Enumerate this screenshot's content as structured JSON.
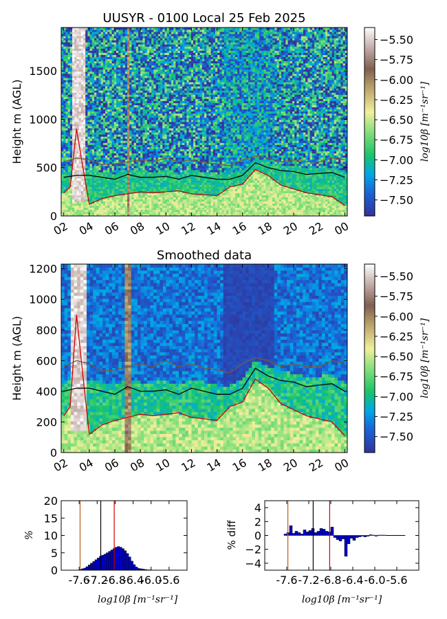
{
  "chart_data": [
    {
      "type": "heatmap",
      "title": "UUSYR - 0100 Local 25 Feb 2025",
      "ylabel": "Height m (AGL)",
      "xlabel": "",
      "x_ticks": [
        "02",
        "04",
        "06",
        "08",
        "10",
        "12",
        "14",
        "16",
        "18",
        "20",
        "22",
        "00"
      ],
      "x_tick_hours": [
        2,
        4,
        6,
        8,
        10,
        12,
        14,
        16,
        18,
        20,
        22,
        24
      ],
      "xlim_hours": [
        1.8,
        24.2
      ],
      "y_ticks": [
        0,
        500,
        1000,
        1500
      ],
      "ylim": [
        0,
        1950
      ],
      "colorbar": {
        "label": "log10β [m⁻¹sr⁻¹]",
        "ticks": [
          "−5.50",
          "−5.75",
          "−6.00",
          "−6.25",
          "−6.50",
          "−6.75",
          "−7.00",
          "−7.25",
          "−7.50"
        ],
        "tick_values": [
          -5.5,
          -5.75,
          -6.0,
          -6.25,
          -6.5,
          -6.75,
          -7.0,
          -7.25,
          -7.5
        ],
        "range": [
          -7.7,
          -5.35
        ],
        "colormap": "terrain_r"
      },
      "lines": [
        {
          "color": "#cc0000",
          "x": [
            2,
            2.5,
            3,
            3.5,
            4,
            5,
            6,
            7,
            8,
            9,
            10,
            11,
            12,
            13,
            14,
            15,
            16,
            17,
            18,
            19,
            20,
            21,
            22,
            23,
            24
          ],
          "y": [
            240,
            300,
            900,
            500,
            120,
            180,
            210,
            230,
            250,
            240,
            250,
            260,
            230,
            220,
            210,
            300,
            330,
            480,
            420,
            320,
            280,
            240,
            220,
            200,
            110
          ]
        },
        {
          "color": "#000000",
          "x": [
            2,
            3,
            4,
            5,
            6,
            7,
            8,
            9,
            10,
            11,
            12,
            13,
            14,
            15,
            16,
            17,
            18,
            19,
            20,
            21,
            22,
            23,
            24
          ],
          "y": [
            400,
            420,
            420,
            400,
            380,
            430,
            400,
            400,
            410,
            380,
            420,
            400,
            380,
            380,
            420,
            550,
            500,
            470,
            460,
            430,
            440,
            450,
            400
          ]
        },
        {
          "color": "#7a5a3a",
          "x": [
            2,
            3,
            4,
            5,
            6,
            7,
            8,
            9,
            10,
            11,
            12,
            13,
            14,
            15,
            16,
            17,
            18,
            19,
            20,
            21,
            22,
            23,
            24
          ],
          "y": [
            560,
            600,
            580,
            530,
            540,
            560,
            580,
            560,
            600,
            560,
            580,
            550,
            540,
            520,
            580,
            620,
            600,
            560,
            580,
            560,
            560,
            600,
            580
          ]
        }
      ]
    },
    {
      "type": "heatmap",
      "title": "Smoothed data",
      "ylabel": "Height m (AGL)",
      "xlabel": "",
      "x_ticks": [
        "02",
        "04",
        "06",
        "08",
        "10",
        "12",
        "14",
        "16",
        "18",
        "20",
        "22",
        "00"
      ],
      "x_tick_hours": [
        2,
        4,
        6,
        8,
        10,
        12,
        14,
        16,
        18,
        20,
        22,
        24
      ],
      "xlim_hours": [
        1.8,
        24.2
      ],
      "y_ticks": [
        0,
        200,
        400,
        600,
        800,
        1000,
        1200
      ],
      "ylim": [
        0,
        1230
      ],
      "colorbar": {
        "label": "log10β [m⁻¹sr⁻¹]",
        "ticks": [
          "−5.50",
          "−5.75",
          "−6.00",
          "−6.25",
          "−6.50",
          "−6.75",
          "−7.00",
          "−7.25",
          "−7.50"
        ],
        "tick_values": [
          -5.5,
          -5.75,
          -6.0,
          -6.25,
          -6.5,
          -6.75,
          -7.0,
          -7.25,
          -7.5
        ],
        "range": [
          -7.7,
          -5.35
        ],
        "colormap": "terrain_r"
      },
      "lines": [
        {
          "color": "#cc0000",
          "x": [
            2,
            2.5,
            3,
            3.5,
            4,
            5,
            6,
            7,
            8,
            9,
            10,
            11,
            12,
            13,
            14,
            15,
            16,
            17,
            18,
            19,
            20,
            21,
            22,
            23,
            24
          ],
          "y": [
            240,
            300,
            900,
            500,
            120,
            180,
            210,
            230,
            250,
            240,
            250,
            260,
            230,
            220,
            210,
            300,
            330,
            480,
            420,
            320,
            280,
            240,
            220,
            200,
            110
          ]
        },
        {
          "color": "#000000",
          "x": [
            2,
            3,
            4,
            5,
            6,
            7,
            8,
            9,
            10,
            11,
            12,
            13,
            14,
            15,
            16,
            17,
            18,
            19,
            20,
            21,
            22,
            23,
            24
          ],
          "y": [
            400,
            420,
            420,
            400,
            380,
            430,
            400,
            400,
            410,
            380,
            420,
            400,
            380,
            380,
            420,
            550,
            500,
            470,
            460,
            430,
            440,
            450,
            400
          ]
        },
        {
          "color": "#7a5a3a",
          "x": [
            2,
            3,
            4,
            5,
            6,
            7,
            8,
            9,
            10,
            11,
            12,
            13,
            14,
            15,
            16,
            17,
            18,
            19,
            20,
            21,
            22,
            23,
            24
          ],
          "y": [
            560,
            600,
            580,
            530,
            540,
            560,
            580,
            560,
            600,
            560,
            580,
            550,
            540,
            520,
            580,
            620,
            600,
            560,
            580,
            560,
            560,
            600,
            580
          ]
        }
      ]
    },
    {
      "type": "bar",
      "title": "",
      "ylabel": "%",
      "xlabel": "log10β [m⁻¹sr⁻¹]",
      "x_ticks": [
        "-7.6",
        "-7.2",
        "-6.8",
        "-6.4",
        "-6.0",
        "-5.6"
      ],
      "x_tick_values": [
        -7.6,
        -7.2,
        -6.8,
        -6.4,
        -6.0,
        -5.6
      ],
      "xlim": [
        -8.0,
        -5.2
      ],
      "y_ticks": [
        "0",
        "5",
        "10",
        "15",
        "20"
      ],
      "ylim": [
        0,
        20
      ],
      "bin_width": 0.05,
      "bin_starts": [
        -7.6,
        -7.55,
        -7.5,
        -7.45,
        -7.4,
        -7.35,
        -7.3,
        -7.25,
        -7.2,
        -7.15,
        -7.1,
        -7.05,
        -7.0,
        -6.95,
        -6.9,
        -6.85,
        -6.8,
        -6.75,
        -6.7,
        -6.65,
        -6.6,
        -6.55,
        -6.5,
        -6.45,
        -6.4,
        -6.35,
        -6.3,
        -6.25,
        -6.2,
        -6.15,
        -6.1,
        -6.05,
        -6.0
      ],
      "values": [
        0.2,
        0.4,
        0.6,
        1.0,
        1.5,
        2.0,
        2.5,
        3.0,
        3.5,
        4.0,
        4.3,
        4.6,
        5.0,
        5.4,
        5.8,
        6.2,
        6.6,
        6.8,
        6.6,
        6.2,
        5.6,
        4.8,
        3.8,
        2.6,
        1.6,
        0.9,
        0.5,
        0.4,
        0.3,
        0.2,
        0.1,
        0.1,
        0.05
      ],
      "vlines": [
        {
          "x": -7.58,
          "color": "#b85c1a"
        },
        {
          "x": -7.12,
          "color": "#000000"
        },
        {
          "x": -6.82,
          "color": "#cc0000"
        }
      ]
    },
    {
      "type": "bar",
      "title": "",
      "ylabel": "% diff",
      "xlabel": "log10β [m⁻¹sr⁻¹]",
      "x_ticks": [
        "-7.6",
        "-7.2",
        "-6.8",
        "-6.4",
        "-6.0",
        "-5.6"
      ],
      "x_tick_values": [
        -7.6,
        -7.2,
        -6.8,
        -6.4,
        -6.0,
        -5.6
      ],
      "xlim": [
        -8.0,
        -5.2
      ],
      "y_ticks": [
        "−4",
        "−2",
        "0",
        "2",
        "4"
      ],
      "ylim": [
        -5,
        5
      ],
      "bin_width": 0.05,
      "bin_starts": [
        -7.65,
        -7.6,
        -7.55,
        -7.5,
        -7.45,
        -7.4,
        -7.35,
        -7.3,
        -7.25,
        -7.2,
        -7.15,
        -7.1,
        -7.05,
        -7.0,
        -6.95,
        -6.9,
        -6.85,
        -6.8,
        -6.75,
        -6.7,
        -6.65,
        -6.6,
        -6.55,
        -6.5,
        -6.45,
        -6.4,
        -6.35,
        -6.3,
        -6.25,
        -6.2,
        -6.15,
        -6.1,
        -6.05,
        -6.0,
        -5.95,
        -5.9,
        -5.85,
        -5.8,
        -5.75,
        -5.7,
        -5.65,
        -5.6,
        -5.55,
        -5.5
      ],
      "values": [
        0.2,
        0.4,
        1.4,
        0.3,
        0.6,
        0.4,
        0.2,
        0.8,
        0.5,
        0.7,
        1.0,
        0.4,
        0.6,
        1.0,
        0.9,
        0.6,
        0.5,
        1.2,
        -0.3,
        -0.6,
        -0.8,
        -0.5,
        -3.0,
        -1.2,
        -0.4,
        -0.7,
        -0.3,
        -0.2,
        -0.1,
        -0.2,
        -0.1,
        0.1,
        0.05,
        -0.1,
        0.05,
        0.05,
        0.05,
        0.02,
        0.02,
        0.02,
        0.02,
        0.02,
        0.02,
        0.02
      ],
      "vlines": [
        {
          "x": -7.58,
          "color": "#b85c1a"
        },
        {
          "x": -7.12,
          "color": "#000000"
        },
        {
          "x": -6.82,
          "color": "#cc0000"
        }
      ]
    }
  ]
}
